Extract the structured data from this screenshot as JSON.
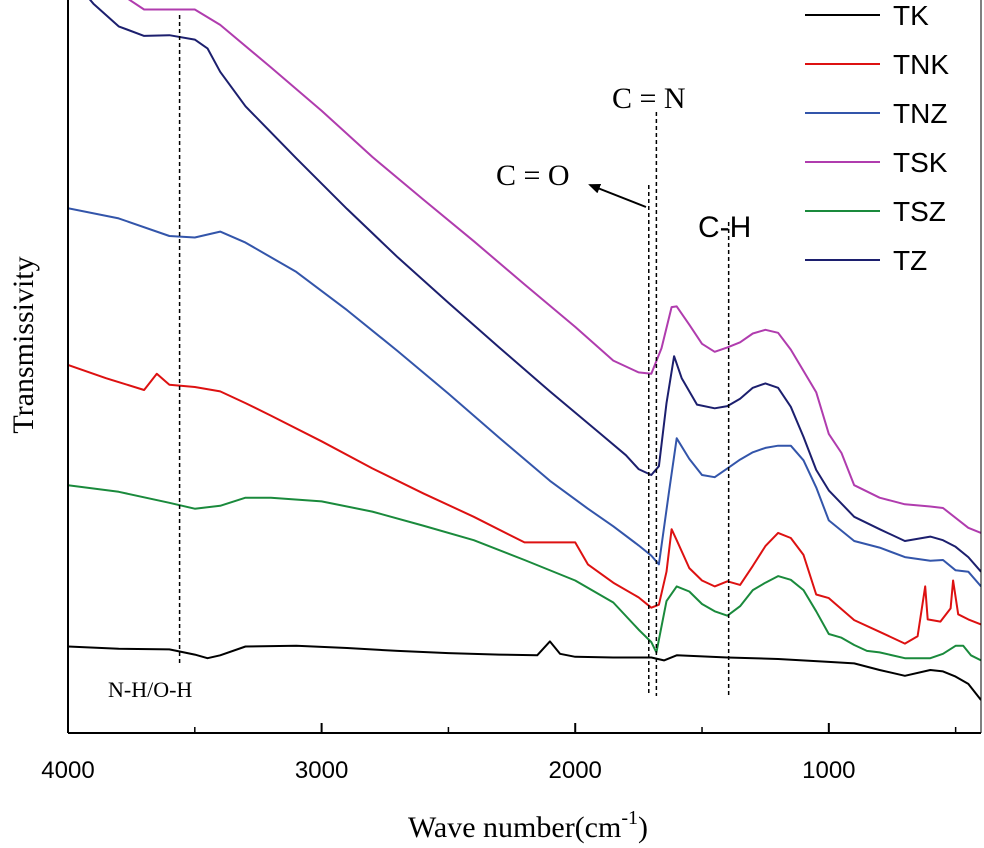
{
  "chart_data": {
    "type": "line",
    "xlabel": "Wave number(cm",
    "xlabel_sup": "-1",
    "xlabel_close": ")",
    "ylabel": "Transmissivity",
    "xlim": [
      4000,
      400
    ],
    "ylim": [
      0,
      100
    ],
    "x_ticks": [
      4000,
      3000,
      2000,
      1000
    ],
    "x_tick_labels": [
      "4000",
      "3000",
      "2000",
      "1000"
    ],
    "grid": false,
    "legend_position": "top-right",
    "series": [
      {
        "name": "TK",
        "color": "#000000",
        "points": [
          [
            4000,
            11.8
          ],
          [
            3800,
            11.5
          ],
          [
            3600,
            11.4
          ],
          [
            3500,
            10.7
          ],
          [
            3450,
            10.2
          ],
          [
            3400,
            10.6
          ],
          [
            3300,
            11.8
          ],
          [
            3100,
            11.9
          ],
          [
            2900,
            11.6
          ],
          [
            2700,
            11.2
          ],
          [
            2500,
            10.9
          ],
          [
            2300,
            10.7
          ],
          [
            2150,
            10.6
          ],
          [
            2100,
            12.5
          ],
          [
            2060,
            10.8
          ],
          [
            2000,
            10.4
          ],
          [
            1850,
            10.3
          ],
          [
            1700,
            10.3
          ],
          [
            1650,
            9.9
          ],
          [
            1600,
            10.6
          ],
          [
            1400,
            10.3
          ],
          [
            1200,
            10.1
          ],
          [
            1000,
            9.7
          ],
          [
            900,
            9.5
          ],
          [
            800,
            8.6
          ],
          [
            700,
            7.8
          ],
          [
            600,
            8.6
          ],
          [
            550,
            8.4
          ],
          [
            500,
            7.7
          ],
          [
            450,
            6.7
          ],
          [
            400,
            4.5
          ]
        ]
      },
      {
        "name": "TNK",
        "color": "#dd1111",
        "points": [
          [
            4000,
            50.2
          ],
          [
            3850,
            48.4
          ],
          [
            3700,
            46.8
          ],
          [
            3650,
            49.0
          ],
          [
            3600,
            47.5
          ],
          [
            3500,
            47.2
          ],
          [
            3400,
            46.6
          ],
          [
            3300,
            45.0
          ],
          [
            3200,
            43.3
          ],
          [
            3000,
            39.8
          ],
          [
            2800,
            36.1
          ],
          [
            2600,
            32.7
          ],
          [
            2400,
            29.5
          ],
          [
            2200,
            26.0
          ],
          [
            2000,
            26.0
          ],
          [
            1950,
            23.0
          ],
          [
            1850,
            20.5
          ],
          [
            1750,
            18.5
          ],
          [
            1700,
            17.1
          ],
          [
            1670,
            17.5
          ],
          [
            1640,
            22.0
          ],
          [
            1620,
            27.8
          ],
          [
            1600,
            26.3
          ],
          [
            1550,
            22.5
          ],
          [
            1500,
            20.8
          ],
          [
            1450,
            20.0
          ],
          [
            1400,
            20.7
          ],
          [
            1350,
            20.2
          ],
          [
            1300,
            22.8
          ],
          [
            1250,
            25.5
          ],
          [
            1200,
            27.3
          ],
          [
            1150,
            26.6
          ],
          [
            1100,
            24.3
          ],
          [
            1050,
            18.9
          ],
          [
            1000,
            18.4
          ],
          [
            900,
            15.4
          ],
          [
            800,
            13.8
          ],
          [
            700,
            12.2
          ],
          [
            650,
            13.2
          ],
          [
            620,
            20.0
          ],
          [
            610,
            15.5
          ],
          [
            560,
            15.2
          ],
          [
            520,
            17.0
          ],
          [
            510,
            20.8
          ],
          [
            490,
            16.2
          ],
          [
            450,
            15.5
          ],
          [
            400,
            14.8
          ]
        ]
      },
      {
        "name": "TNZ",
        "color": "#3355aa",
        "points": [
          [
            4000,
            71.6
          ],
          [
            3800,
            70.2
          ],
          [
            3600,
            67.8
          ],
          [
            3500,
            67.6
          ],
          [
            3400,
            68.4
          ],
          [
            3300,
            66.9
          ],
          [
            3100,
            62.9
          ],
          [
            2900,
            57.7
          ],
          [
            2700,
            52.1
          ],
          [
            2500,
            46.3
          ],
          [
            2300,
            40.3
          ],
          [
            2100,
            34.4
          ],
          [
            1950,
            30.6
          ],
          [
            1850,
            28.2
          ],
          [
            1750,
            25.6
          ],
          [
            1700,
            24.2
          ],
          [
            1670,
            23.0
          ],
          [
            1630,
            33.0
          ],
          [
            1600,
            40.2
          ],
          [
            1550,
            37.4
          ],
          [
            1500,
            35.2
          ],
          [
            1450,
            34.9
          ],
          [
            1400,
            36.1
          ],
          [
            1350,
            37.3
          ],
          [
            1300,
            38.3
          ],
          [
            1250,
            38.9
          ],
          [
            1200,
            39.2
          ],
          [
            1150,
            39.2
          ],
          [
            1100,
            37.2
          ],
          [
            1050,
            33.5
          ],
          [
            1000,
            29.0
          ],
          [
            900,
            26.2
          ],
          [
            800,
            25.3
          ],
          [
            700,
            24.0
          ],
          [
            600,
            23.5
          ],
          [
            550,
            23.6
          ],
          [
            500,
            22.2
          ],
          [
            450,
            22.0
          ],
          [
            400,
            20.0
          ]
        ]
      },
      {
        "name": "TSK",
        "color": "#b03cae",
        "points": [
          [
            4000,
            104.0
          ],
          [
            3800,
            101.0
          ],
          [
            3700,
            98.7
          ],
          [
            3500,
            98.7
          ],
          [
            3400,
            96.6
          ],
          [
            3200,
            90.8
          ],
          [
            3000,
            84.9
          ],
          [
            2800,
            78.6
          ],
          [
            2600,
            72.8
          ],
          [
            2400,
            67.1
          ],
          [
            2200,
            61.2
          ],
          [
            2000,
            55.4
          ],
          [
            1850,
            50.8
          ],
          [
            1750,
            49.2
          ],
          [
            1700,
            49.0
          ],
          [
            1660,
            52.5
          ],
          [
            1620,
            58.1
          ],
          [
            1600,
            58.2
          ],
          [
            1550,
            55.7
          ],
          [
            1500,
            53.1
          ],
          [
            1450,
            52.0
          ],
          [
            1400,
            52.6
          ],
          [
            1350,
            53.3
          ],
          [
            1300,
            54.5
          ],
          [
            1250,
            55.0
          ],
          [
            1200,
            54.6
          ],
          [
            1150,
            52.3
          ],
          [
            1050,
            46.5
          ],
          [
            1000,
            40.8
          ],
          [
            950,
            38.2
          ],
          [
            900,
            33.8
          ],
          [
            800,
            32.1
          ],
          [
            700,
            31.2
          ],
          [
            600,
            30.9
          ],
          [
            550,
            30.7
          ],
          [
            450,
            28.0
          ],
          [
            400,
            27.3
          ]
        ]
      },
      {
        "name": "TSZ",
        "color": "#1a8a3c",
        "points": [
          [
            4000,
            33.8
          ],
          [
            3800,
            32.9
          ],
          [
            3600,
            31.4
          ],
          [
            3500,
            30.6
          ],
          [
            3400,
            31.0
          ],
          [
            3300,
            32.1
          ],
          [
            3200,
            32.1
          ],
          [
            3000,
            31.6
          ],
          [
            2800,
            30.2
          ],
          [
            2600,
            28.3
          ],
          [
            2400,
            26.3
          ],
          [
            2200,
            23.6
          ],
          [
            2000,
            20.8
          ],
          [
            1850,
            17.8
          ],
          [
            1750,
            14.1
          ],
          [
            1700,
            12.4
          ],
          [
            1680,
            11.0
          ],
          [
            1640,
            18.0
          ],
          [
            1600,
            20.0
          ],
          [
            1550,
            19.3
          ],
          [
            1500,
            17.6
          ],
          [
            1450,
            16.6
          ],
          [
            1400,
            16.0
          ],
          [
            1350,
            17.3
          ],
          [
            1300,
            19.5
          ],
          [
            1250,
            20.5
          ],
          [
            1200,
            21.4
          ],
          [
            1150,
            20.9
          ],
          [
            1100,
            19.5
          ],
          [
            1050,
            16.6
          ],
          [
            1000,
            13.5
          ],
          [
            950,
            13.0
          ],
          [
            900,
            12.0
          ],
          [
            850,
            11.2
          ],
          [
            800,
            11.0
          ],
          [
            700,
            10.2
          ],
          [
            600,
            10.2
          ],
          [
            550,
            10.8
          ],
          [
            500,
            11.9
          ],
          [
            470,
            11.9
          ],
          [
            440,
            10.6
          ],
          [
            400,
            9.9
          ]
        ]
      },
      {
        "name": "TZ",
        "color": "#1c1f6e",
        "points": [
          [
            4000,
            103.6
          ],
          [
            3900,
            99.5
          ],
          [
            3800,
            96.4
          ],
          [
            3700,
            95.1
          ],
          [
            3600,
            95.2
          ],
          [
            3500,
            94.6
          ],
          [
            3450,
            93.4
          ],
          [
            3400,
            90.2
          ],
          [
            3300,
            85.5
          ],
          [
            3100,
            78.4
          ],
          [
            2900,
            71.5
          ],
          [
            2700,
            64.9
          ],
          [
            2500,
            58.7
          ],
          [
            2300,
            52.6
          ],
          [
            2100,
            46.6
          ],
          [
            1900,
            40.8
          ],
          [
            1800,
            37.9
          ],
          [
            1750,
            36.0
          ],
          [
            1700,
            35.2
          ],
          [
            1670,
            36.4
          ],
          [
            1640,
            45.0
          ],
          [
            1610,
            51.4
          ],
          [
            1580,
            48.4
          ],
          [
            1520,
            44.8
          ],
          [
            1450,
            44.3
          ],
          [
            1400,
            44.6
          ],
          [
            1350,
            45.6
          ],
          [
            1300,
            47.1
          ],
          [
            1250,
            47.7
          ],
          [
            1200,
            47.1
          ],
          [
            1150,
            44.5
          ],
          [
            1100,
            40.4
          ],
          [
            1050,
            35.9
          ],
          [
            1000,
            33.1
          ],
          [
            900,
            29.5
          ],
          [
            800,
            27.8
          ],
          [
            700,
            26.2
          ],
          [
            600,
            26.8
          ],
          [
            550,
            26.3
          ],
          [
            500,
            25.4
          ],
          [
            450,
            24.0
          ],
          [
            400,
            22.0
          ]
        ]
      }
    ],
    "annotations": {
      "nh_oh": "N-H/O-H",
      "co": "C = O",
      "cn": "C = N",
      "ch": "C-H"
    },
    "marker_lines": [
      3560,
      1710,
      1680,
      1395
    ]
  }
}
